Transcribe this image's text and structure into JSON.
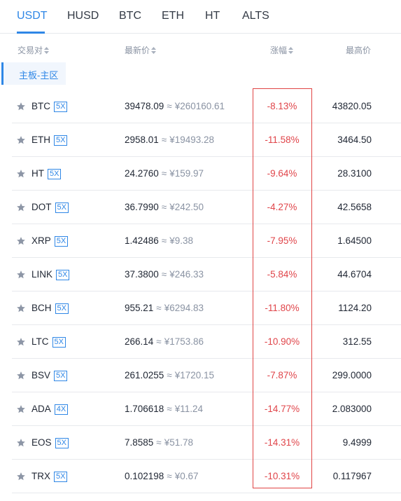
{
  "tabs": [
    {
      "label": "USDT",
      "active": true
    },
    {
      "label": "HUSD",
      "active": false
    },
    {
      "label": "BTC",
      "active": false
    },
    {
      "label": "ETH",
      "active": false
    },
    {
      "label": "HT",
      "active": false
    },
    {
      "label": "ALTS",
      "active": false
    }
  ],
  "columns": {
    "pair": "交易对",
    "price": "最新价",
    "change": "涨幅",
    "high": "最高价"
  },
  "board": {
    "label": "主板-主区"
  },
  "colors": {
    "accent": "#2f87e6",
    "down": "#e0454a",
    "muted": "#8a93a3",
    "highlight": "#e04444"
  },
  "rows": [
    {
      "symbol": "BTC",
      "leverage": "5X",
      "price": "39478.09",
      "approx": "≈",
      "cny": "¥260160.61",
      "change": "-8.13%",
      "high": "43820.05"
    },
    {
      "symbol": "ETH",
      "leverage": "5X",
      "price": "2958.01",
      "approx": "≈",
      "cny": "¥19493.28",
      "change": "-11.58%",
      "high": "3464.50"
    },
    {
      "symbol": "HT",
      "leverage": "5X",
      "price": "24.2760",
      "approx": "≈",
      "cny": "¥159.97",
      "change": "-9.64%",
      "high": "28.3100"
    },
    {
      "symbol": "DOT",
      "leverage": "5X",
      "price": "36.7990",
      "approx": "≈",
      "cny": "¥242.50",
      "change": "-4.27%",
      "high": "42.5658"
    },
    {
      "symbol": "XRP",
      "leverage": "5X",
      "price": "1.42486",
      "approx": "≈",
      "cny": "¥9.38",
      "change": "-7.95%",
      "high": "1.64500"
    },
    {
      "symbol": "LINK",
      "leverage": "5X",
      "price": "37.3800",
      "approx": "≈",
      "cny": "¥246.33",
      "change": "-5.84%",
      "high": "44.6704"
    },
    {
      "symbol": "BCH",
      "leverage": "5X",
      "price": "955.21",
      "approx": "≈",
      "cny": "¥6294.83",
      "change": "-11.80%",
      "high": "1124.20"
    },
    {
      "symbol": "LTC",
      "leverage": "5X",
      "price": "266.14",
      "approx": "≈",
      "cny": "¥1753.86",
      "change": "-10.90%",
      "high": "312.55"
    },
    {
      "symbol": "BSV",
      "leverage": "5X",
      "price": "261.0255",
      "approx": "≈",
      "cny": "¥1720.15",
      "change": "-7.87%",
      "high": "299.0000"
    },
    {
      "symbol": "ADA",
      "leverage": "4X",
      "price": "1.706618",
      "approx": "≈",
      "cny": "¥11.24",
      "change": "-14.77%",
      "high": "2.083000"
    },
    {
      "symbol": "EOS",
      "leverage": "5X",
      "price": "7.8585",
      "approx": "≈",
      "cny": "¥51.78",
      "change": "-14.31%",
      "high": "9.4999"
    },
    {
      "symbol": "TRX",
      "leverage": "5X",
      "price": "0.102198",
      "approx": "≈",
      "cny": "¥0.67",
      "change": "-10.31%",
      "high": "0.117967"
    }
  ]
}
